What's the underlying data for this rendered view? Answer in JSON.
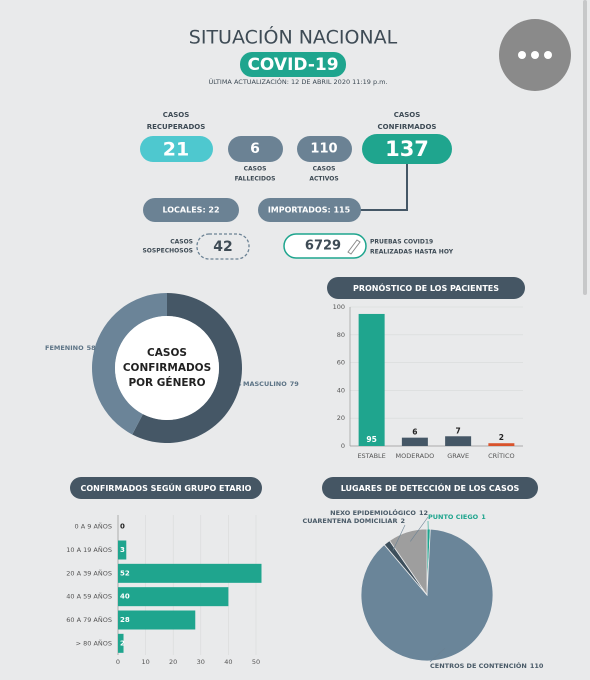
{
  "header": {
    "title": "SITUACIÓN NACIONAL",
    "badge": "COVID-19",
    "updated": "ÚLTIMA ACTUALIZACIÓN: 12 DE ABRIL 2020 11:19 p.m."
  },
  "stats": {
    "recovered": {
      "value": 21,
      "label": [
        "CASOS",
        "RECUPERADOS"
      ]
    },
    "deaths": {
      "value": 6,
      "label": [
        "CASOS",
        "FALLECIDOS"
      ]
    },
    "active": {
      "value": 110,
      "label": [
        "CASOS",
        "ACTIVOS"
      ]
    },
    "confirmed": {
      "value": 137,
      "label": [
        "CASOS",
        "CONFIRMADOS"
      ]
    },
    "local": "LOCALES: 22",
    "imported": "IMPORTADOS: 115",
    "suspected": {
      "value": 42,
      "label": [
        "CASOS",
        "SOSPECHOSOS"
      ]
    },
    "tests": {
      "value": 6729,
      "label": [
        "PRUEBAS COVID19",
        "REALIZADAS HASTA HOY"
      ]
    }
  },
  "chart_data": [
    {
      "type": "donut",
      "title": [
        "CASOS",
        "CONFIRMADOS",
        "POR GÉNERO"
      ],
      "categories": [
        "FEMENINO",
        "MASCULINO"
      ],
      "values": [
        58,
        79
      ],
      "colors": [
        "#6b8498",
        "#455766"
      ]
    },
    {
      "type": "bar",
      "title": "PRONÓSTICO DE LOS PACIENTES",
      "categories": [
        "ESTABLE",
        "MODERADO",
        "GRAVE",
        "CRÍTICO"
      ],
      "values": [
        95,
        6,
        7,
        2
      ],
      "colors": [
        "#1fa58e",
        "#455766",
        "#455766",
        "#d9532c"
      ],
      "ylim": [
        0,
        100
      ],
      "yticks": [
        0,
        20,
        40,
        60,
        80,
        100
      ],
      "grid": true
    },
    {
      "type": "hbar",
      "title": "CONFIRMADOS SEGÚN GRUPO ETARIO",
      "categories": [
        "0 A 9 AÑOS",
        "10 A 19 AÑOS",
        "20 A 39 AÑOS",
        "40 A 59 AÑOS",
        "60 A 79 AÑOS",
        "> 80 AÑOS"
      ],
      "values": [
        0,
        3,
        52,
        40,
        28,
        2
      ],
      "color": "#1fa58e",
      "xlim": [
        0,
        52
      ],
      "xticks": [
        0,
        10,
        20,
        30,
        40,
        50
      ],
      "grid": true
    },
    {
      "type": "pie",
      "title": "LUGARES DE DETECCIÓN DE LOS CASOS",
      "categories": [
        "CENTROS DE CONTENCIÓN",
        "CUARENTENA DOMICILIAR",
        "NEXO EPIDEMIOLÓGICO",
        "PUNTO CIEGO"
      ],
      "values": [
        110,
        2,
        12,
        1
      ],
      "colors": [
        "#6a8599",
        "#3d4f5c",
        "#9e9e9e",
        "#1fa58e"
      ]
    }
  ]
}
